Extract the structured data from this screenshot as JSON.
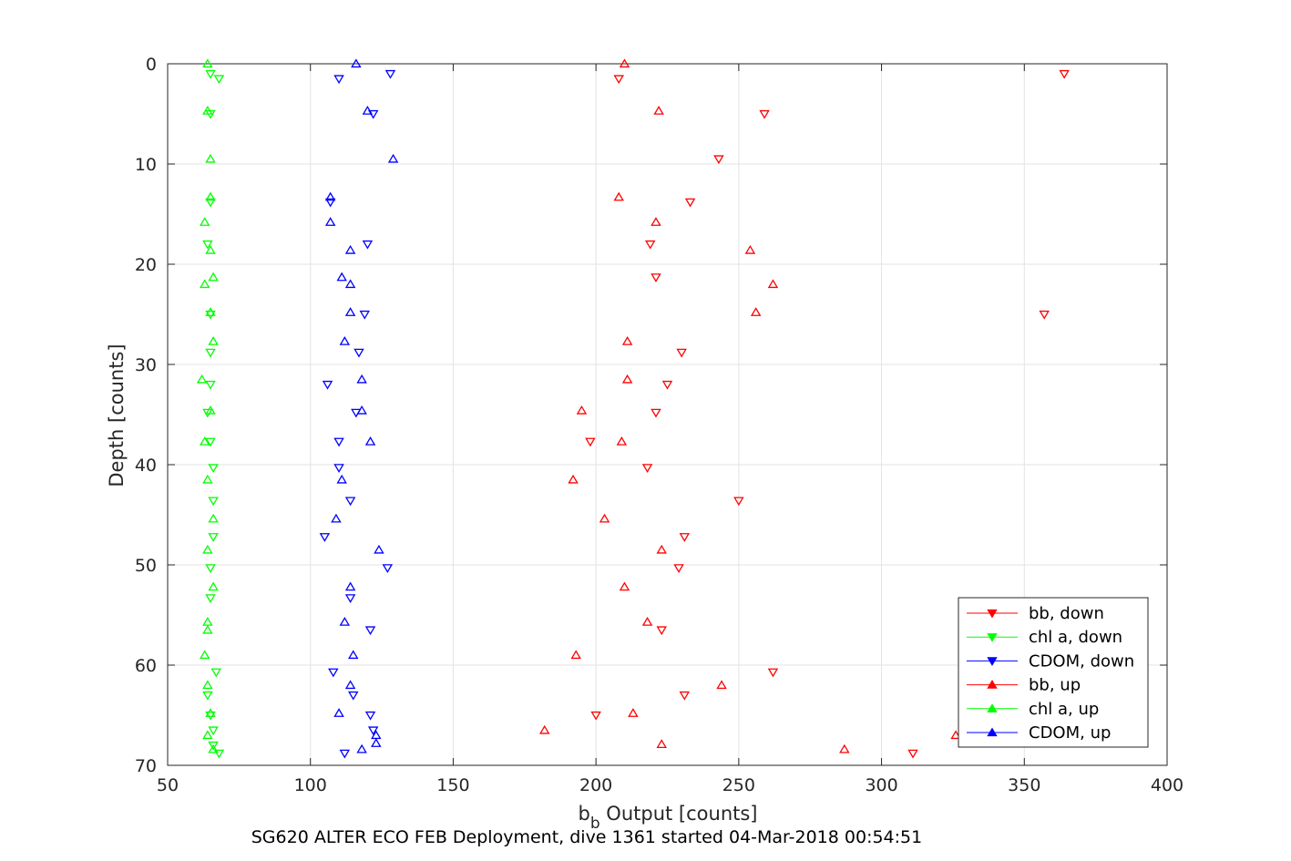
{
  "chart_data": {
    "type": "scatter",
    "xlabel_main": "b",
    "xlabel_sub": "b",
    "xlabel_rest": " Output [counts]",
    "ylabel": "Depth [counts]",
    "caption": "SG620 ALTER ECO FEB Deployment, dive 1361 started 04-Mar-2018 00:54:51",
    "xlim": [
      50,
      400
    ],
    "ylim": [
      0,
      70
    ],
    "y_reversed": true,
    "grid": true,
    "legend_position": "bottom-right",
    "xticks": [
      50,
      100,
      150,
      200,
      250,
      300,
      350,
      400
    ],
    "yticks": [
      0,
      10,
      20,
      30,
      40,
      50,
      60,
      70
    ],
    "series": [
      {
        "name": "bb, down",
        "color": "#ff0000",
        "marker": "triangle-down",
        "points": [
          [
            364,
            1
          ],
          [
            208,
            1.5
          ],
          [
            259,
            5
          ],
          [
            243,
            9.5
          ],
          [
            233,
            13.8
          ],
          [
            219,
            18
          ],
          [
            221,
            21.3
          ],
          [
            357,
            25
          ],
          [
            230,
            28.8
          ],
          [
            225,
            32
          ],
          [
            221,
            34.8
          ],
          [
            198,
            37.7
          ],
          [
            218,
            40.3
          ],
          [
            250,
            43.6
          ],
          [
            231,
            47.2
          ],
          [
            229,
            50.3
          ],
          [
            223,
            56.5
          ],
          [
            262,
            60.7
          ],
          [
            231,
            63
          ],
          [
            200,
            65
          ],
          [
            311,
            68.8
          ]
        ]
      },
      {
        "name": "chl a, down",
        "color": "#00ff00",
        "marker": "triangle-down",
        "points": [
          [
            65,
            1
          ],
          [
            68,
            1.5
          ],
          [
            65,
            5
          ],
          [
            65,
            13.8
          ],
          [
            64,
            18
          ],
          [
            65,
            25
          ],
          [
            65,
            28.8
          ],
          [
            65,
            32
          ],
          [
            64,
            34.8
          ],
          [
            65,
            37.7
          ],
          [
            66,
            40.3
          ],
          [
            66,
            43.6
          ],
          [
            66,
            47.2
          ],
          [
            65,
            50.3
          ],
          [
            65,
            53.3
          ],
          [
            67,
            60.7
          ],
          [
            64,
            63
          ],
          [
            65,
            65
          ],
          [
            66,
            66.5
          ],
          [
            66,
            68
          ],
          [
            68,
            68.8
          ]
        ]
      },
      {
        "name": "CDOM, down",
        "color": "#0000ff",
        "marker": "triangle-down",
        "points": [
          [
            128,
            1
          ],
          [
            110,
            1.5
          ],
          [
            122,
            5
          ],
          [
            107,
            13.8
          ],
          [
            120,
            18
          ],
          [
            119,
            25
          ],
          [
            117,
            28.8
          ],
          [
            106,
            32
          ],
          [
            116,
            34.8
          ],
          [
            110,
            37.7
          ],
          [
            110,
            40.3
          ],
          [
            114,
            43.6
          ],
          [
            105,
            47.2
          ],
          [
            127,
            50.3
          ],
          [
            114,
            53.3
          ],
          [
            121,
            56.5
          ],
          [
            108,
            60.7
          ],
          [
            115,
            63
          ],
          [
            121,
            65
          ],
          [
            122,
            66.5
          ],
          [
            112,
            68.8
          ]
        ]
      },
      {
        "name": "bb, up",
        "color": "#ff0000",
        "marker": "triangle-up",
        "points": [
          [
            210,
            0
          ],
          [
            222,
            4.7
          ],
          [
            208,
            13.3
          ],
          [
            221,
            15.8
          ],
          [
            254,
            18.6
          ],
          [
            262,
            22
          ],
          [
            256,
            24.8
          ],
          [
            211,
            27.7
          ],
          [
            211,
            31.5
          ],
          [
            195,
            34.6
          ],
          [
            209,
            37.7
          ],
          [
            192,
            41.5
          ],
          [
            203,
            45.4
          ],
          [
            223,
            48.5
          ],
          [
            210,
            52.2
          ],
          [
            218,
            55.7
          ],
          [
            193,
            59
          ],
          [
            244,
            62
          ],
          [
            213,
            64.8
          ],
          [
            182,
            66.5
          ],
          [
            326,
            67
          ],
          [
            287,
            68.4
          ],
          [
            223,
            67.9
          ]
        ]
      },
      {
        "name": "chl a, up",
        "color": "#00ff00",
        "marker": "triangle-up",
        "points": [
          [
            64,
            0
          ],
          [
            64,
            4.7
          ],
          [
            65,
            9.5
          ],
          [
            65,
            13.3
          ],
          [
            63,
            15.8
          ],
          [
            65,
            18.6
          ],
          [
            66,
            21.3
          ],
          [
            63,
            22
          ],
          [
            65,
            24.8
          ],
          [
            66,
            27.7
          ],
          [
            62,
            31.5
          ],
          [
            65,
            34.6
          ],
          [
            63,
            37.7
          ],
          [
            64,
            41.5
          ],
          [
            66,
            45.4
          ],
          [
            64,
            48.5
          ],
          [
            66,
            52.2
          ],
          [
            64,
            55.7
          ],
          [
            64,
            56.5
          ],
          [
            63,
            59
          ],
          [
            64,
            62
          ],
          [
            65,
            64.8
          ],
          [
            64,
            67
          ],
          [
            66,
            68.4
          ]
        ]
      },
      {
        "name": "CDOM, up",
        "color": "#0000ff",
        "marker": "triangle-up",
        "points": [
          [
            116,
            0
          ],
          [
            120,
            4.7
          ],
          [
            129,
            9.5
          ],
          [
            107,
            13.3
          ],
          [
            107,
            15.8
          ],
          [
            114,
            18.6
          ],
          [
            111,
            21.3
          ],
          [
            114,
            22
          ],
          [
            114,
            24.8
          ],
          [
            112,
            27.7
          ],
          [
            118,
            31.5
          ],
          [
            118,
            34.6
          ],
          [
            121,
            37.7
          ],
          [
            111,
            41.5
          ],
          [
            109,
            45.4
          ],
          [
            124,
            48.5
          ],
          [
            114,
            52.2
          ],
          [
            112,
            55.7
          ],
          [
            115,
            59
          ],
          [
            114,
            62
          ],
          [
            110,
            64.8
          ],
          [
            123,
            67
          ],
          [
            123,
            67.8
          ],
          [
            118,
            68.4
          ]
        ]
      }
    ]
  }
}
